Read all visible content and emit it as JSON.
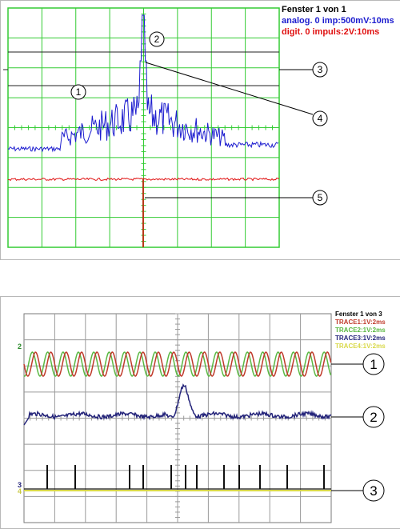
{
  "panel1": {
    "window_title": "Fenster 1 von 1",
    "channels": [
      {
        "text": "analog. 0 imp:500mV:10ms",
        "color": "#1d1dcf"
      },
      {
        "text": "digit. 0 impuls:2V:10ms",
        "color": "#e01010"
      }
    ],
    "callouts": [
      "1",
      "2",
      "3",
      "4",
      "5"
    ]
  },
  "panel2": {
    "window_title": "Fenster 1 von 3",
    "traces": [
      {
        "text": "TRACE1:1V:2ms",
        "color": "#c03a2b"
      },
      {
        "text": "TRACE2:1V:2ms",
        "color": "#5ab842"
      },
      {
        "text": "TRACE3:1V:2ms",
        "color": "#24247a"
      },
      {
        "text": "TRACE4:1V:2ms",
        "color": "#d8d848"
      }
    ],
    "side_labels": {
      "trace_2": "2",
      "trace_3": "3",
      "trace_4": "4"
    },
    "callouts": [
      "1",
      "2",
      "3"
    ]
  },
  "colors": {
    "grid": "#33cc33",
    "analog": "#1d1dcf",
    "digital": "#e01010",
    "impulse": "#111111"
  }
}
